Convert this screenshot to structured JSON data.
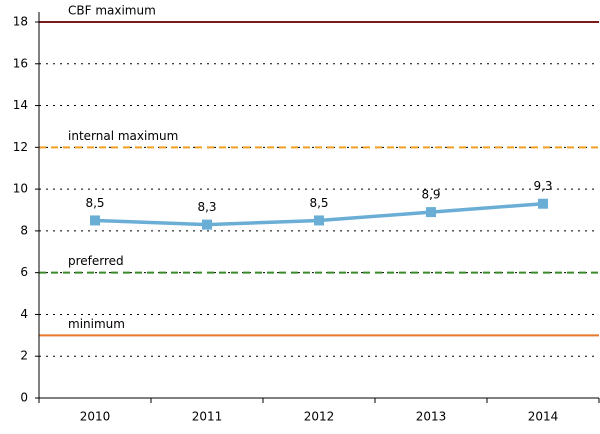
{
  "chart_data": {
    "type": "line",
    "categories": [
      "2010",
      "2011",
      "2012",
      "2013",
      "2014"
    ],
    "series": [
      {
        "color": "#6aaed6",
        "values": [
          8.5,
          8.3,
          8.5,
          8.9,
          9.3
        ],
        "value_labels": [
          "8,5",
          "8,3",
          "8,5",
          "8,9",
          "9,3"
        ]
      }
    ],
    "ylim": [
      0,
      18
    ],
    "yticks": [
      0,
      2,
      4,
      6,
      8,
      10,
      12,
      14,
      16,
      18
    ],
    "grid": true,
    "reference_lines": [
      {
        "label": "CBF maximum",
        "value": 18,
        "color": "#7b1a1a",
        "style": "solid"
      },
      {
        "label": "internal maximum",
        "value": 12,
        "color": "#f0a020",
        "style": "dashed"
      },
      {
        "label": "preferred",
        "value": 6,
        "color": "#3a8a2a",
        "style": "dashed"
      },
      {
        "label": "minimum",
        "value": 3,
        "color": "#e8782a",
        "style": "solid"
      }
    ]
  }
}
